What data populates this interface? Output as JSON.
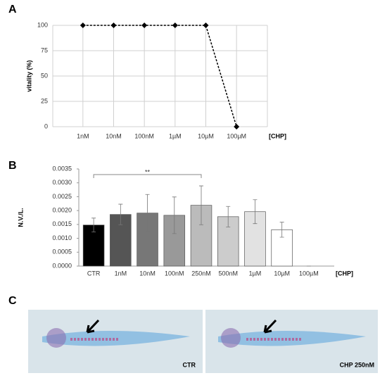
{
  "panel_labels": [
    "A",
    "B",
    "C"
  ],
  "chart_data": [
    {
      "type": "line",
      "y_label": "vitality (%)",
      "x_unit_label": "[CHP]",
      "categories": [
        "1nM",
        "10nM",
        "100nM",
        "1µM",
        "10µM",
        "100µM"
      ],
      "values": [
        100,
        100,
        100,
        100,
        100,
        0
      ],
      "color": "#000000",
      "ylim": [
        0,
        100
      ],
      "yticks": [
        0,
        25,
        50,
        75,
        100
      ],
      "grid": true
    },
    {
      "type": "bar",
      "y_label": "N.V./L.",
      "x_unit_label": "[CHP]",
      "annotation": "**",
      "categories": [
        "CTR",
        "1nM",
        "10nM",
        "100nM",
        "250nM",
        "500nM",
        "1µM",
        "10µM",
        "100µM"
      ],
      "values": [
        0.00148,
        0.00186,
        0.00191,
        0.00183,
        0.00219,
        0.00178,
        0.00196,
        0.00131,
        0.0
      ],
      "errors": [
        0.00025,
        0.00037,
        0.00067,
        0.00066,
        0.0007,
        0.00037,
        0.00043,
        0.00027,
        0.0
      ],
      "colors": [
        "#000000",
        "#555555",
        "#777777",
        "#999999",
        "#bbbbbb",
        "#cccccc",
        "#e2e2e2",
        "#ffffff",
        "#ffffff"
      ],
      "ylim": [
        0,
        0.0035
      ],
      "yticks": [
        {
          "value": 0,
          "label": "0.0000"
        },
        {
          "value": 0.0005,
          "label": "0.0005"
        },
        {
          "value": 0.001,
          "label": "0.0010"
        },
        {
          "value": 0.0015,
          "label": "0.0015"
        },
        {
          "value": 0.002,
          "label": "0.0020"
        },
        {
          "value": 0.0025,
          "label": "0.0025"
        },
        {
          "value": 0.003,
          "label": "0.0030"
        },
        {
          "value": 0.0035,
          "label": "0.0035"
        }
      ],
      "grid": false
    }
  ],
  "images": [
    {
      "label": "CTR"
    },
    {
      "label": "CHP 250nM"
    }
  ]
}
